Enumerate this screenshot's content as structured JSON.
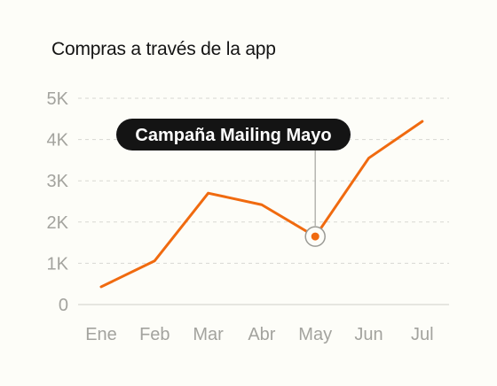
{
  "chart_data": {
    "type": "line",
    "title": "Compras a través de la app",
    "categories": [
      "Ene",
      "Feb",
      "Mar",
      "Abr",
      "May",
      "Jun",
      "Jul"
    ],
    "series": [
      {
        "values": [
          430,
          1060,
          2700,
          2420,
          1650,
          3550,
          4440
        ]
      }
    ],
    "yticks": [
      0,
      1000,
      2000,
      3000,
      4000,
      5000
    ],
    "ytick_labels": [
      "0",
      "1K",
      "2K",
      "3K",
      "4K",
      "5K"
    ],
    "ylim": [
      0,
      5000
    ],
    "grid": true,
    "line_color": "#f06a0f",
    "annotation": {
      "text": "Campaña Mailing Mayo",
      "category": "May"
    }
  }
}
